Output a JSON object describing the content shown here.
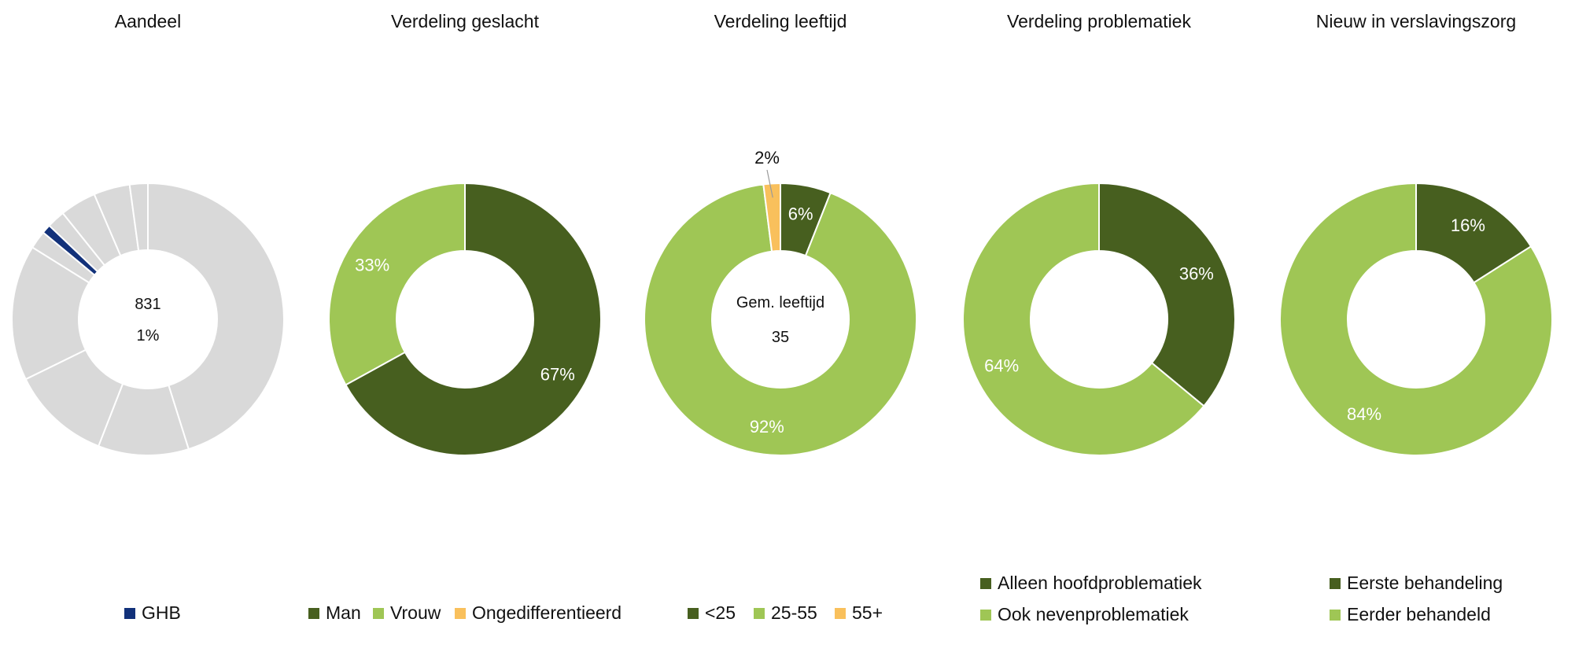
{
  "chart_data": [
    {
      "type": "pie",
      "variant": "donut",
      "title": "Aandeel",
      "center_lines": [
        "831",
        "1%"
      ],
      "highlight_color": "#12317A",
      "other_color": "#D9D9D9",
      "slices": [
        {
          "value": 42
        },
        {
          "value": 10
        },
        {
          "value": 11
        },
        {
          "value": 15
        },
        {
          "value": 2
        },
        {
          "name": "GHB",
          "value": 1,
          "highlight": true
        },
        {
          "value": 2
        },
        {
          "value": 4
        },
        {
          "value": 4
        },
        {
          "value": 2
        }
      ],
      "legend": [
        {
          "name": "GHB",
          "color": "#12317A"
        }
      ],
      "legend_position": "bottom"
    },
    {
      "type": "pie",
      "variant": "donut",
      "title": "Verdeling geslacht",
      "center_lines": [],
      "slices": [
        {
          "name": "Man",
          "value": 67,
          "label": "67%",
          "color": "#475F1F"
        },
        {
          "name": "Vrouw",
          "value": 33,
          "label": "33%",
          "color": "#9FC655"
        }
      ],
      "legend": [
        {
          "name": "Man",
          "color": "#475F1F"
        },
        {
          "name": "Vrouw",
          "color": "#9FC655"
        },
        {
          "name": "Ongedifferentieerd",
          "color": "#F9C05C"
        }
      ],
      "legend_position": "bottom"
    },
    {
      "type": "pie",
      "variant": "donut",
      "title": "Verdeling leeftijd",
      "center_lines": [
        "Gem. leeftijd",
        "35"
      ],
      "slices": [
        {
          "name": "<25",
          "value": 6,
          "label": "6%",
          "color": "#475F1F"
        },
        {
          "name": "25-55",
          "value": 92,
          "label": "92%",
          "color": "#9FC655"
        },
        {
          "name": "55+",
          "value": 2,
          "label": "2%",
          "color": "#F9C05C",
          "label_outside": true
        }
      ],
      "legend": [
        {
          "name": "<25",
          "color": "#475F1F"
        },
        {
          "name": "25-55",
          "color": "#9FC655"
        },
        {
          "name": "55+",
          "color": "#F9C05C"
        }
      ],
      "legend_position": "bottom"
    },
    {
      "type": "pie",
      "variant": "donut",
      "title": "Verdeling problematiek",
      "center_lines": [],
      "slices": [
        {
          "name": "Alleen hoofdproblematiek",
          "value": 36,
          "label": "36%",
          "color": "#475F1F"
        },
        {
          "name": "Ook nevenproblematiek",
          "value": 64,
          "label": "64%",
          "color": "#9FC655"
        }
      ],
      "legend": [
        {
          "name": "Alleen hoofdproblematiek",
          "color": "#475F1F"
        },
        {
          "name": "Ook nevenproblematiek",
          "color": "#9FC655"
        }
      ],
      "legend_position": "bottom"
    },
    {
      "type": "pie",
      "variant": "donut",
      "title": "Nieuw in verslavingszorg",
      "center_lines": [],
      "slices": [
        {
          "name": "Eerste behandeling",
          "value": 16,
          "label": "16%",
          "color": "#475F1F"
        },
        {
          "name": "Eerder behandeld",
          "value": 84,
          "label": "84%",
          "color": "#9FC655"
        }
      ],
      "legend": [
        {
          "name": "Eerste behandeling",
          "color": "#475F1F"
        },
        {
          "name": "Eerder behandeld",
          "color": "#9FC655"
        }
      ],
      "legend_position": "bottom"
    }
  ]
}
